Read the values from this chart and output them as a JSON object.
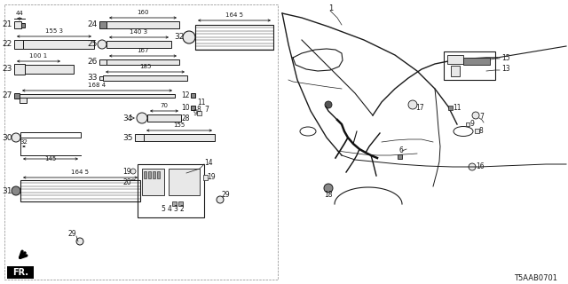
{
  "bg_color": "#ffffff",
  "diagram_code": "T5AAB0701",
  "line_color": "#1a1a1a",
  "dim_color": "#1a1a1a",
  "fill_light": "#e8e8e8",
  "fill_hatch": "#cccccc"
}
